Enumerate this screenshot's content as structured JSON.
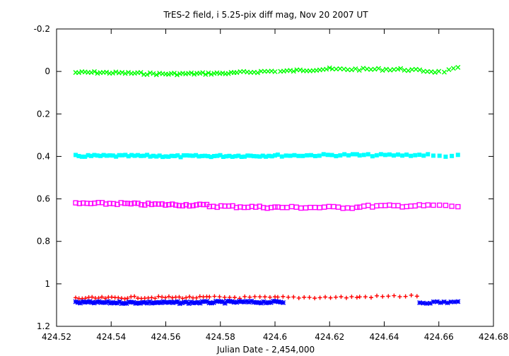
{
  "chart_data": {
    "type": "scatter",
    "title": "TrES-2 field, i 5.25-pix diff mag, Nov 20 2007 UT",
    "xlabel": "Julian Date - 2,454,000",
    "ylabel": "",
    "xlim": [
      424.52,
      424.68
    ],
    "ylim": [
      -0.2,
      1.2
    ],
    "y_inverted": true,
    "grid": false,
    "legend": "none",
    "x_ticks": [
      "424.52",
      "424.54",
      "424.56",
      "424.58",
      "424.6",
      "424.62",
      "424.64",
      "424.66",
      "424.68"
    ],
    "y_ticks": [
      "-0.2",
      "0",
      "0.2",
      "0.4",
      "0.6",
      "0.8",
      "1",
      "1.2"
    ],
    "x_tick_values": [
      424.52,
      424.54,
      424.56,
      424.58,
      424.6,
      424.62,
      424.64,
      424.66,
      424.68
    ],
    "y_tick_values": [
      -0.2,
      0,
      0.2,
      0.4,
      0.6,
      0.8,
      1.0,
      1.2
    ],
    "series": [
      {
        "color": "#00ff00",
        "marker": "x",
        "points": [
          {
            "x_start": 424.527,
            "x_end": 424.535,
            "n": 8,
            "y_start": 0.005,
            "y_end": 0.005
          },
          {
            "x_start": 424.536,
            "x_end": 424.56,
            "n": 22,
            "y_start": 0.005,
            "y_end": 0.012
          },
          {
            "x_start": 424.561,
            "x_end": 424.585,
            "n": 24,
            "y_start": 0.012,
            "y_end": 0.008
          },
          {
            "x_start": 424.586,
            "x_end": 424.6,
            "n": 12,
            "y_start": 0.006,
            "y_end": -0.002
          },
          {
            "x_start": 424.602,
            "x_end": 424.62,
            "n": 16,
            "y_start": 0.0,
            "y_end": -0.012
          },
          {
            "x_start": 424.621,
            "x_end": 424.645,
            "n": 18,
            "y_start": -0.01,
            "y_end": -0.01
          },
          {
            "x_start": 424.646,
            "x_end": 424.66,
            "n": 11,
            "y_start": -0.01,
            "y_end": 0.002
          },
          {
            "x_start": 424.662,
            "x_end": 424.667,
            "n": 4,
            "y_start": 0.0,
            "y_end": -0.015
          }
        ]
      },
      {
        "color": "#00ffff",
        "marker": "filled-square",
        "points": [
          {
            "x_start": 424.527,
            "x_end": 424.56,
            "n": 30,
            "y_start": 0.398,
            "y_end": 0.398
          },
          {
            "x_start": 424.561,
            "x_end": 424.6,
            "n": 36,
            "y_start": 0.4,
            "y_end": 0.396
          },
          {
            "x_start": 424.601,
            "x_end": 424.63,
            "n": 20,
            "y_start": 0.396,
            "y_end": 0.393
          },
          {
            "x_start": 424.631,
            "x_end": 424.656,
            "n": 17,
            "y_start": 0.395,
            "y_end": 0.393
          },
          {
            "x_start": 424.658,
            "x_end": 424.667,
            "n": 5,
            "y_start": 0.398,
            "y_end": 0.397
          }
        ]
      },
      {
        "color": "#ff00ff",
        "marker": "open-square",
        "points": [
          {
            "x_start": 424.527,
            "x_end": 424.545,
            "n": 14,
            "y_start": 0.622,
            "y_end": 0.622
          },
          {
            "x_start": 424.546,
            "x_end": 424.575,
            "n": 24,
            "y_start": 0.624,
            "y_end": 0.63
          },
          {
            "x_start": 424.576,
            "x_end": 424.6,
            "n": 18,
            "y_start": 0.634,
            "y_end": 0.64
          },
          {
            "x_start": 424.601,
            "x_end": 424.63,
            "n": 18,
            "y_start": 0.64,
            "y_end": 0.64
          },
          {
            "x_start": 424.631,
            "x_end": 424.656,
            "n": 17,
            "y_start": 0.635,
            "y_end": 0.632
          },
          {
            "x_start": 424.658,
            "x_end": 424.667,
            "n": 5,
            "y_start": 0.63,
            "y_end": 0.636
          }
        ]
      },
      {
        "color": "#ff0000",
        "marker": "plus",
        "points": [
          {
            "x_start": 424.527,
            "x_end": 424.545,
            "n": 16,
            "y_start": 1.068,
            "y_end": 1.066
          },
          {
            "x_start": 424.546,
            "x_end": 424.575,
            "n": 24,
            "y_start": 1.064,
            "y_end": 1.064
          },
          {
            "x_start": 424.576,
            "x_end": 424.6,
            "n": 14,
            "y_start": 1.063,
            "y_end": 1.065
          },
          {
            "x_start": 424.601,
            "x_end": 424.63,
            "n": 16,
            "y_start": 1.064,
            "y_end": 1.063
          },
          {
            "x_start": 424.631,
            "x_end": 424.652,
            "n": 11,
            "y_start": 1.062,
            "y_end": 1.056
          }
        ]
      },
      {
        "color": "#0000ff",
        "marker": "star",
        "points": [
          {
            "x_start": 424.527,
            "x_end": 424.56,
            "n": 40,
            "y_start": 1.088,
            "y_end": 1.088
          },
          {
            "x_start": 424.561,
            "x_end": 424.585,
            "n": 30,
            "y_start": 1.089,
            "y_end": 1.086
          },
          {
            "x_start": 424.586,
            "x_end": 424.603,
            "n": 20,
            "y_start": 1.086,
            "y_end": 1.086
          },
          {
            "x_start": 424.653,
            "x_end": 424.667,
            "n": 12,
            "y_start": 1.088,
            "y_end": 1.086
          }
        ]
      }
    ]
  }
}
